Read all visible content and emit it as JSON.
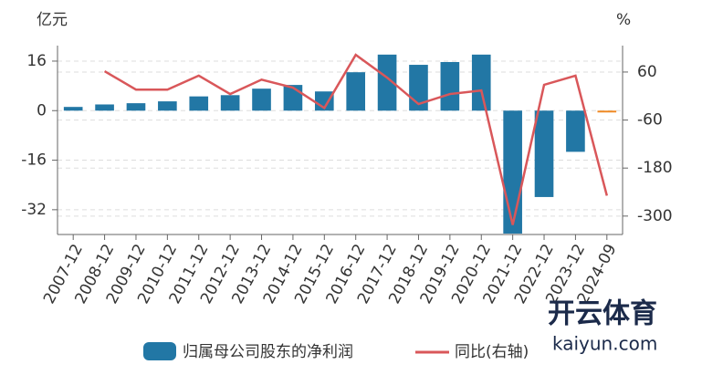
{
  "chart_data": {
    "type": "bar-line",
    "y_unit": "亿元",
    "y2_unit": "%",
    "categories": [
      "2007-12",
      "2008-12",
      "2009-12",
      "2010-12",
      "2011-12",
      "2012-12",
      "2013-12",
      "2014-12",
      "2015-12",
      "2016-12",
      "2017-12",
      "2018-12",
      "2019-12",
      "2020-12",
      "2021-12",
      "2022-12",
      "2023-12",
      "2024-09"
    ],
    "series": [
      {
        "name": "归属母公司股东的净利润",
        "type": "bar",
        "color": "#2277a5",
        "colors": [
          "#2277a5",
          "#2277a5",
          "#2277a5",
          "#2277a5",
          "#2277a5",
          "#2277a5",
          "#2277a5",
          "#2277a5",
          "#2277a5",
          "#2277a5",
          "#2277a5",
          "#2277a5",
          "#2277a5",
          "#2277a5",
          "#2277a5",
          "#2277a5",
          "#2277a5",
          "#f08a24"
        ],
        "values": [
          1.2,
          2.0,
          2.4,
          3.0,
          4.6,
          5.0,
          7.1,
          8.3,
          6.2,
          12.4,
          18.1,
          14.8,
          15.7,
          18.1,
          -39.7,
          -27.9,
          -13.3,
          -0.3
        ]
      },
      {
        "name": "同比(右轴)",
        "type": "line",
        "axis": "y2",
        "color": "#d9575a",
        "values": [
          null,
          62,
          16,
          16,
          51,
          5,
          41,
          21,
          -30,
          103,
          46,
          -20,
          5,
          14,
          -322,
          28,
          51,
          -249
        ]
      }
    ],
    "ylim": [
      -40,
      21
    ],
    "yticks": [
      -32,
      -16,
      0,
      16
    ],
    "y2lim": [
      -346,
      126
    ],
    "y2ticks": [
      -300,
      -180,
      -60,
      60
    ],
    "grid": true,
    "watermark": [
      "开云体育",
      "kaiyun.com"
    ]
  }
}
